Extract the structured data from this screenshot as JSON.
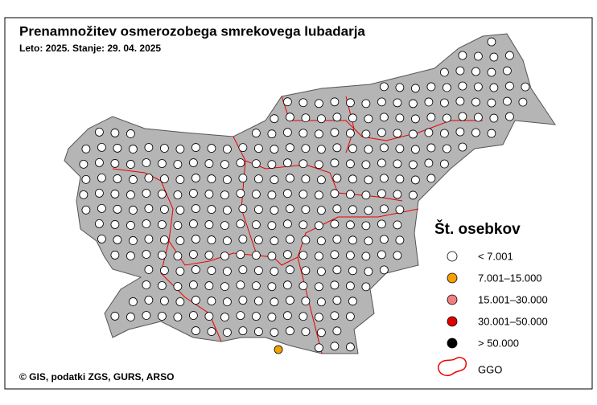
{
  "title": "Prenamnožitev osmerozobega smrekovega lubadarja",
  "subtitle": "Leto: 2025. Stanje: 29. 04. 2025",
  "legend": {
    "title": "Št. osebkov",
    "items": [
      {
        "label": "< 7.001",
        "color": "#ffffff"
      },
      {
        "label": "7.001–15.000",
        "color": "#f5a000"
      },
      {
        "label": "15.001–30.000",
        "color": "#f08080"
      },
      {
        "label": "30.001–50.000",
        "color": "#e00000"
      },
      {
        "label": "> 50.000",
        "color": "#000000"
      }
    ],
    "boundary": "GGO"
  },
  "credit": "© GIS, podatki ZGS, GURS, ARSO"
}
